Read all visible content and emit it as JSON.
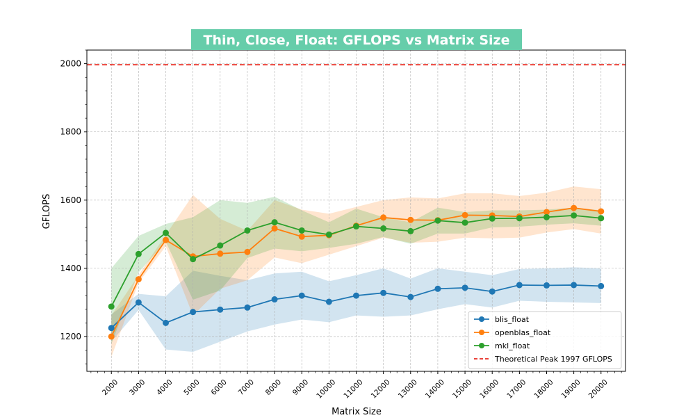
{
  "chart_data": {
    "type": "line",
    "title": "Thin, Close, Float: GFLOPS vs Matrix Size",
    "xlabel": "Matrix Size",
    "ylabel": "GFLOPS",
    "x": [
      2000,
      3000,
      4000,
      5000,
      6000,
      7000,
      8000,
      9000,
      10000,
      11000,
      12000,
      13000,
      14000,
      15000,
      16000,
      17000,
      18000,
      19000,
      20000
    ],
    "x_tick_labels": [
      "2000",
      "3000",
      "4000",
      "5000",
      "6000",
      "7000",
      "8000",
      "9000",
      "10000",
      "11000",
      "12000",
      "13000",
      "14000",
      "15000",
      "16000",
      "17000",
      "18000",
      "19000",
      "20000"
    ],
    "xlim": [
      1100,
      20900
    ],
    "ylim": [
      1098,
      2040
    ],
    "y_ticks": [
      1200,
      1400,
      1600,
      1800,
      2000
    ],
    "y_tick_labels": [
      "1200",
      "1400",
      "1600",
      "1800",
      "2000"
    ],
    "grid": true,
    "legend_position": "lower-right",
    "colors": {
      "title_bg": "#66cdaa",
      "grid": "#b0b0b0",
      "peak": "#e8281e"
    },
    "series": [
      {
        "name": "blis_float",
        "color": "#1f77b4",
        "values": [
          1225,
          1300,
          1240,
          1272,
          1279,
          1285,
          1309,
          1320,
          1302,
          1320,
          1328,
          1316,
          1340,
          1343,
          1332,
          1351,
          1350,
          1351,
          1348
        ],
        "upper": [
          1265,
          1325,
          1318,
          1393,
          1378,
          1365,
          1385,
          1390,
          1362,
          1380,
          1400,
          1370,
          1400,
          1390,
          1380,
          1398,
          1400,
          1403,
          1400
        ],
        "lower": [
          1185,
          1278,
          1162,
          1155,
          1185,
          1215,
          1235,
          1250,
          1242,
          1262,
          1258,
          1262,
          1280,
          1295,
          1285,
          1305,
          1302,
          1300,
          1298
        ]
      },
      {
        "name": "openblas_float",
        "color": "#ff7f0e",
        "values": [
          1200,
          1368,
          1483,
          1435,
          1443,
          1448,
          1517,
          1493,
          1497,
          1525,
          1549,
          1542,
          1541,
          1556,
          1555,
          1552,
          1565,
          1577,
          1567
        ],
        "upper": [
          1262,
          1380,
          1498,
          1615,
          1545,
          1510,
          1600,
          1572,
          1560,
          1580,
          1600,
          1608,
          1605,
          1620,
          1620,
          1612,
          1622,
          1640,
          1632
        ],
        "lower": [
          1140,
          1358,
          1465,
          1262,
          1340,
          1365,
          1432,
          1415,
          1440,
          1465,
          1490,
          1475,
          1478,
          1490,
          1488,
          1490,
          1505,
          1515,
          1502
        ]
      },
      {
        "name": "mkl_float",
        "color": "#2ca02c",
        "values": [
          1288,
          1442,
          1504,
          1427,
          1467,
          1511,
          1535,
          1511,
          1499,
          1523,
          1517,
          1509,
          1540,
          1534,
          1546,
          1547,
          1550,
          1555,
          1547
        ],
        "upper": [
          1400,
          1495,
          1530,
          1550,
          1600,
          1592,
          1610,
          1570,
          1535,
          1575,
          1550,
          1535,
          1578,
          1565,
          1570,
          1570,
          1572,
          1578,
          1570
        ],
        "lower": [
          1178,
          1388,
          1478,
          1308,
          1335,
          1430,
          1458,
          1450,
          1460,
          1472,
          1492,
          1472,
          1502,
          1502,
          1520,
          1522,
          1528,
          1532,
          1525
        ]
      }
    ],
    "reference_line": {
      "name": "Theoretical Peak 1997 GFLOPS",
      "value": 1997,
      "color": "#e8281e",
      "style": "dashed"
    }
  }
}
